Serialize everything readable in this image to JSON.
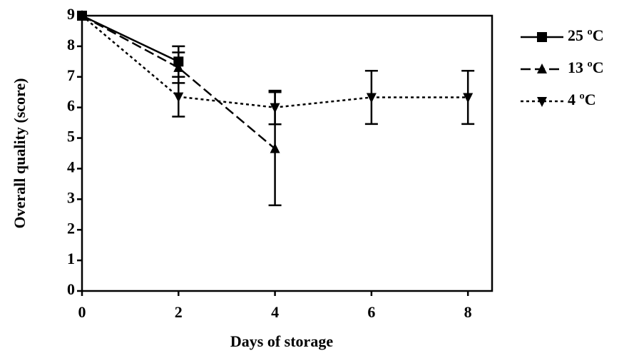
{
  "chart_data": {
    "type": "line",
    "xlabel": "Days of storage",
    "ylabel": "Overall quality (score)",
    "xlim": [
      0,
      8.5
    ],
    "ylim": [
      0,
      9
    ],
    "xticks": [
      0,
      2,
      4,
      6,
      8
    ],
    "yticks": [
      0,
      1,
      2,
      3,
      4,
      5,
      6,
      7,
      8,
      9
    ],
    "series": [
      {
        "name": "25 ºC",
        "color": "#000000",
        "marker": "square",
        "dash": "solid",
        "x": [
          0,
          2
        ],
        "values": [
          9,
          7.5
        ],
        "errors": [
          null,
          0.5
        ]
      },
      {
        "name": "13 ºC",
        "color": "#000000",
        "marker": "triangle-up",
        "dash": "dashed",
        "x": [
          0,
          2,
          4
        ],
        "values": [
          9,
          7.3,
          4.65
        ],
        "errors": [
          null,
          0.5,
          1.85
        ]
      },
      {
        "name": "4 ºC",
        "color": "#000000",
        "marker": "triangle-down",
        "dash": "dotted",
        "x": [
          0,
          2,
          4,
          6,
          8
        ],
        "values": [
          9,
          6.35,
          6.0,
          6.33,
          6.33
        ],
        "errors": [
          null,
          0.65,
          0.55,
          0.87,
          0.87
        ]
      }
    ]
  }
}
